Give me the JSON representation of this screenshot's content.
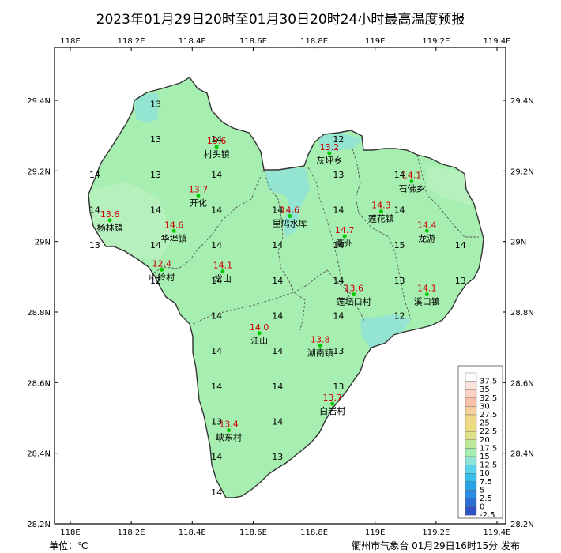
{
  "title": "2023年01月29日20时至01月30日20时24小时最高温度预报",
  "unit_label": "单位：℃",
  "publisher": "衢州市气象台 01月29日16时15分 发布",
  "colors": {
    "land": "#a6efb1",
    "land_light": "#b8f0c0",
    "cyan": "#8fe3d8",
    "boundary": "#333333",
    "county_line": "#555555",
    "site_dot": "#00cc00",
    "site_value": "#cc0000"
  },
  "axes": {
    "lon_ticks": [
      "118E",
      "118.2E",
      "118.4E",
      "118.6E",
      "118.8E",
      "119E",
      "119.2E",
      "119.4E"
    ],
    "lat_ticks": [
      "29.4N",
      "29.2N",
      "29N",
      "28.8N",
      "28.6N",
      "28.4N",
      "28.2N"
    ],
    "lon_range": [
      118.0,
      119.4
    ],
    "lat_range": [
      28.2,
      29.5
    ],
    "grid": false
  },
  "grid_values": [
    {
      "lon": 118.28,
      "lat": 29.39,
      "v": "13"
    },
    {
      "lon": 118.28,
      "lat": 29.29,
      "v": "13"
    },
    {
      "lon": 118.48,
      "lat": 29.29,
      "v": "14"
    },
    {
      "lon": 118.08,
      "lat": 29.19,
      "v": "14"
    },
    {
      "lon": 118.28,
      "lat": 29.19,
      "v": "13"
    },
    {
      "lon": 118.48,
      "lat": 29.19,
      "v": "14"
    },
    {
      "lon": 118.88,
      "lat": 29.29,
      "v": "12"
    },
    {
      "lon": 118.88,
      "lat": 29.19,
      "v": "13"
    },
    {
      "lon": 119.08,
      "lat": 29.19,
      "v": "14"
    },
    {
      "lon": 118.08,
      "lat": 29.09,
      "v": "14"
    },
    {
      "lon": 118.28,
      "lat": 29.09,
      "v": "14"
    },
    {
      "lon": 118.48,
      "lat": 29.09,
      "v": "14"
    },
    {
      "lon": 118.68,
      "lat": 29.09,
      "v": "14"
    },
    {
      "lon": 118.88,
      "lat": 29.09,
      "v": "14"
    },
    {
      "lon": 119.08,
      "lat": 29.09,
      "v": "14"
    },
    {
      "lon": 118.08,
      "lat": 28.99,
      "v": "13"
    },
    {
      "lon": 118.28,
      "lat": 28.99,
      "v": "14"
    },
    {
      "lon": 118.48,
      "lat": 28.99,
      "v": "14"
    },
    {
      "lon": 118.68,
      "lat": 28.99,
      "v": "14"
    },
    {
      "lon": 118.88,
      "lat": 28.99,
      "v": "14"
    },
    {
      "lon": 119.08,
      "lat": 28.99,
      "v": "15"
    },
    {
      "lon": 119.28,
      "lat": 28.99,
      "v": "14"
    },
    {
      "lon": 118.28,
      "lat": 28.89,
      "v": "12"
    },
    {
      "lon": 118.48,
      "lat": 28.89,
      "v": "14"
    },
    {
      "lon": 118.68,
      "lat": 28.89,
      "v": "14"
    },
    {
      "lon": 118.88,
      "lat": 28.89,
      "v": "14"
    },
    {
      "lon": 119.08,
      "lat": 28.89,
      "v": "13"
    },
    {
      "lon": 119.28,
      "lat": 28.89,
      "v": "13"
    },
    {
      "lon": 118.48,
      "lat": 28.79,
      "v": "14"
    },
    {
      "lon": 118.68,
      "lat": 28.79,
      "v": "14"
    },
    {
      "lon": 118.88,
      "lat": 28.79,
      "v": "14"
    },
    {
      "lon": 119.08,
      "lat": 28.79,
      "v": "12"
    },
    {
      "lon": 118.48,
      "lat": 28.69,
      "v": "14"
    },
    {
      "lon": 118.68,
      "lat": 28.69,
      "v": "14"
    },
    {
      "lon": 118.88,
      "lat": 28.69,
      "v": "13"
    },
    {
      "lon": 118.48,
      "lat": 28.59,
      "v": "14"
    },
    {
      "lon": 118.68,
      "lat": 28.59,
      "v": "14"
    },
    {
      "lon": 118.88,
      "lat": 28.59,
      "v": "13"
    },
    {
      "lon": 118.48,
      "lat": 28.49,
      "v": "13"
    },
    {
      "lon": 118.68,
      "lat": 28.49,
      "v": "14"
    },
    {
      "lon": 118.48,
      "lat": 28.39,
      "v": "14"
    },
    {
      "lon": 118.68,
      "lat": 28.39,
      "v": "13"
    },
    {
      "lon": 118.48,
      "lat": 28.29,
      "v": "14"
    }
  ],
  "sites": [
    {
      "name": "村头镇",
      "value": "13.6",
      "lon": 118.48,
      "lat": 29.268
    },
    {
      "name": "灰坪乡",
      "value": "13.2",
      "lon": 118.85,
      "lat": 29.25
    },
    {
      "name": "石佛乡",
      "value": "14.1",
      "lon": 119.12,
      "lat": 29.17
    },
    {
      "name": "开化",
      "value": "13.7",
      "lon": 118.42,
      "lat": 29.13
    },
    {
      "name": "杨林镇",
      "value": "13.6",
      "lon": 118.13,
      "lat": 29.06
    },
    {
      "name": "华埠镇",
      "value": "14.6",
      "lon": 118.34,
      "lat": 29.03
    },
    {
      "name": "里鸠水库",
      "value": "14.6",
      "lon": 118.72,
      "lat": 29.072
    },
    {
      "name": "莲花镇",
      "value": "14.3",
      "lon": 119.02,
      "lat": 29.085
    },
    {
      "name": "龙游",
      "value": "14.4",
      "lon": 119.17,
      "lat": 29.03
    },
    {
      "name": "衢州",
      "value": "14.7",
      "lon": 118.9,
      "lat": 29.015
    },
    {
      "name": "山岭村",
      "value": "12.4",
      "lon": 118.3,
      "lat": 28.92
    },
    {
      "name": "常山",
      "value": "14.1",
      "lon": 118.5,
      "lat": 28.915
    },
    {
      "name": "莲坛口村",
      "value": "13.6",
      "lon": 118.93,
      "lat": 28.85
    },
    {
      "name": "溪口镇",
      "value": "14.1",
      "lon": 119.17,
      "lat": 28.85
    },
    {
      "name": "江山",
      "value": "14.0",
      "lon": 118.62,
      "lat": 28.74
    },
    {
      "name": "湖南镇",
      "value": "13.8",
      "lon": 118.82,
      "lat": 28.705
    },
    {
      "name": "白岩村",
      "value": "13.7",
      "lon": 118.86,
      "lat": 28.54
    },
    {
      "name": "峡东村",
      "value": "13.4",
      "lon": 118.52,
      "lat": 28.465
    }
  ],
  "legend": {
    "labels": [
      "37.5",
      "35",
      "32.5",
      "30",
      "27.5",
      "25",
      "22.5",
      "20",
      "17.5",
      "15",
      "12.5",
      "10",
      "7.5",
      "5",
      "2.5",
      "0",
      "-2.5"
    ],
    "colors": [
      "#fefefe",
      "#fce4de",
      "#fbd2c4",
      "#f8c0a8",
      "#f6cf9b",
      "#f0d888",
      "#ecdd80",
      "#dfe388",
      "#bde99a",
      "#a6efb1",
      "#8fe3d8",
      "#5ad4ea",
      "#37bde9",
      "#29a3e6",
      "#2a8ce2",
      "#2a6fd6",
      "#2f52c7"
    ]
  }
}
